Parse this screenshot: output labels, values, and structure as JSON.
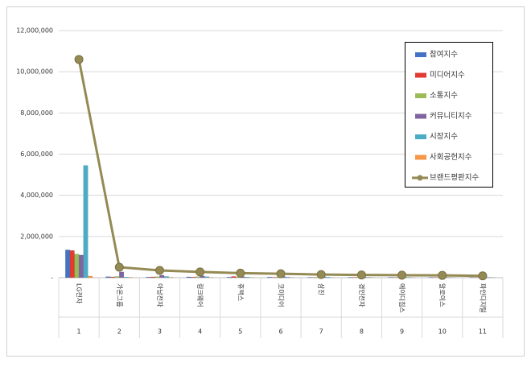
{
  "chart_data": {
    "type": "bar",
    "categories": [
      "LG전자",
      "가온그룹",
      "아남전자",
      "링크웨어",
      "휴맥스",
      "코미디어",
      "삼진",
      "경인전자",
      "에이디칩스",
      "알로이스",
      "파인디지털"
    ],
    "rank_labels": [
      "1",
      "2",
      "3",
      "4",
      "5",
      "6",
      "7",
      "8",
      "9",
      "10",
      "11"
    ],
    "series": [
      {
        "name": "참여지수",
        "type": "bar",
        "color": "#4472c4",
        "values": [
          1350000,
          50000,
          30000,
          40000,
          30000,
          30000,
          20000,
          20000,
          20000,
          20000,
          15000
        ]
      },
      {
        "name": "미디어지수",
        "type": "bar",
        "color": "#e03c31",
        "values": [
          1320000,
          40000,
          40000,
          30000,
          60000,
          20000,
          15000,
          20000,
          15000,
          15000,
          10000
        ]
      },
      {
        "name": "소통지수",
        "type": "bar",
        "color": "#9bbb59",
        "values": [
          1150000,
          60000,
          50000,
          50000,
          40000,
          40000,
          30000,
          25000,
          30000,
          25000,
          20000
        ]
      },
      {
        "name": "커뮤니티지수",
        "type": "bar",
        "color": "#8064a2",
        "values": [
          1100000,
          280000,
          120000,
          90000,
          50000,
          60000,
          50000,
          40000,
          30000,
          30000,
          25000
        ]
      },
      {
        "name": "시장지수",
        "type": "bar",
        "color": "#4bacc6",
        "values": [
          5450000,
          30000,
          60000,
          50000,
          30000,
          30000,
          30000,
          20000,
          20000,
          15000,
          15000
        ]
      },
      {
        "name": "사회공헌지수",
        "type": "bar",
        "color": "#f79646",
        "values": [
          80000,
          20000,
          20000,
          10000,
          10000,
          10000,
          5000,
          5000,
          5000,
          5000,
          5000
        ]
      },
      {
        "name": "브랜드평판지수",
        "type": "line",
        "color": "#948a54",
        "values": [
          10600000,
          510000,
          350000,
          280000,
          220000,
          190000,
          150000,
          130000,
          120000,
          110000,
          90000
        ]
      }
    ],
    "ylim": [
      0,
      12000000
    ],
    "yticks": [
      {
        "value": 0,
        "label": "-"
      },
      {
        "value": 2000000,
        "label": "2,000,000"
      },
      {
        "value": 4000000,
        "label": "4,000,000"
      },
      {
        "value": 6000000,
        "label": "6,000,000"
      },
      {
        "value": 8000000,
        "label": "8,000,000"
      },
      {
        "value": 10000000,
        "label": "10,000,000"
      },
      {
        "value": 12000000,
        "label": "12,000,000"
      }
    ],
    "grid": true
  }
}
